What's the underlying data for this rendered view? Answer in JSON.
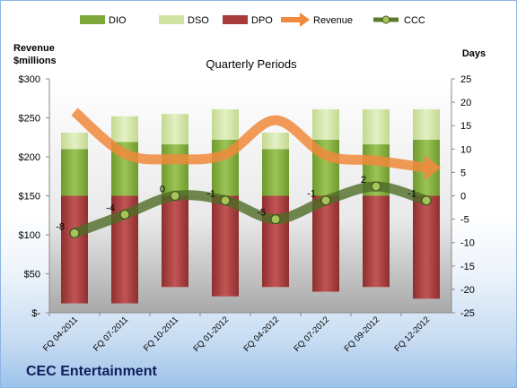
{
  "chart_data": {
    "type": "bar",
    "title": "Quarterly Periods",
    "left_axis_title_line1": "Revenue",
    "left_axis_title_line2": "$millions",
    "right_axis_title": "Days",
    "footer": "CEC Entertainment",
    "categories": [
      "FQ 04-2011",
      "FQ 07-2011",
      "FQ 10-2011",
      "FQ 01-2012",
      "FQ 04-2012",
      "FQ 07-2012",
      "FQ 09-2012",
      "FQ 12-2012"
    ],
    "left_ticks": [
      "$-",
      "$50",
      "$100",
      "$150",
      "$200",
      "$250",
      "$300"
    ],
    "right_ticks": [
      "-25",
      "-20",
      "-15",
      "-10",
      "-5",
      "0",
      "5",
      "10",
      "15",
      "20",
      "25"
    ],
    "left_ylim": [
      0,
      300
    ],
    "right_ylim": [
      -25,
      25
    ],
    "legend_position": "top",
    "legend": [
      {
        "name": "DIO",
        "kind": "box",
        "color": "#7fa83c"
      },
      {
        "name": "DSO",
        "kind": "box",
        "color": "#d2e4a4"
      },
      {
        "name": "DPO",
        "kind": "box",
        "color": "#a83c3c"
      },
      {
        "name": "Revenue",
        "kind": "arrow",
        "color": "#f08a3c"
      },
      {
        "name": "CCC",
        "kind": "line-dot",
        "color": "#5b7a2e"
      }
    ],
    "series": [
      {
        "name": "DPO",
        "axis": "right",
        "values": [
          -23,
          -23,
          -19.5,
          -21.5,
          -19.5,
          -20.5,
          -19.5,
          -22
        ]
      },
      {
        "name": "DIO",
        "axis": "right",
        "values": [
          0,
          0,
          0,
          0,
          0,
          0,
          0,
          0
        ],
        "top_values": [
          10,
          11.5,
          11,
          12,
          10,
          12,
          11,
          12
        ]
      },
      {
        "name": "DSO",
        "axis": "right",
        "values": [
          3.5,
          5.5,
          6.5,
          6.5,
          3.5,
          6.5,
          7.5,
          6.5
        ]
      },
      {
        "name": "CCC",
        "axis": "right",
        "values": [
          -8,
          -4,
          0,
          -1,
          -5,
          -1,
          2,
          -1
        ]
      },
      {
        "name": "Revenue",
        "axis": "left",
        "values": [
          258,
          204,
          197,
          203,
          247,
          202,
          195,
          186
        ]
      }
    ],
    "ccc_labels": [
      "-8",
      "-4",
      "0",
      "-1",
      "-5",
      "-1",
      "2",
      "-1"
    ]
  }
}
